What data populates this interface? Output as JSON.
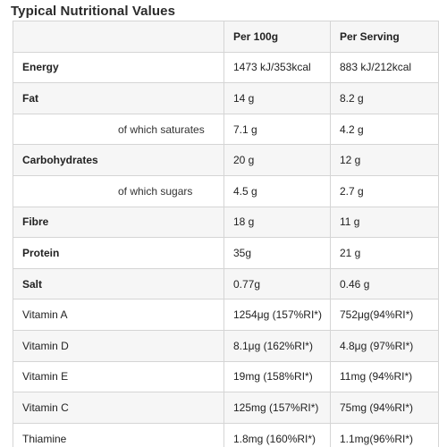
{
  "title": "Typical Nutritional Values",
  "header": {
    "label": "",
    "per100": "Per 100g",
    "perServing": "Per Serving"
  },
  "rows": [
    {
      "label": "Energy",
      "bold": true,
      "sub": false,
      "per100": "1473 kJ/353kcal",
      "perServing": "883 kJ/212kcal"
    },
    {
      "label": "Fat",
      "bold": true,
      "sub": false,
      "per100": "14 g",
      "perServing": "8.2 g"
    },
    {
      "label": "of which saturates",
      "bold": false,
      "sub": true,
      "per100": "7.1 g",
      "perServing": "4.2 g"
    },
    {
      "label": "Carbohydrates",
      "bold": true,
      "sub": false,
      "per100": "20 g",
      "perServing": "12 g"
    },
    {
      "label": "of which sugars",
      "bold": false,
      "sub": true,
      "per100": "4.5 g",
      "perServing": "2.7 g"
    },
    {
      "label": "Fibre",
      "bold": true,
      "sub": false,
      "per100": "18 g",
      "perServing": "11 g"
    },
    {
      "label": "Protein",
      "bold": true,
      "sub": false,
      "per100": "35g",
      "perServing": "21 g"
    },
    {
      "label": "Salt",
      "bold": true,
      "sub": false,
      "per100": "0.77g",
      "perServing": "0.46 g"
    },
    {
      "label": "Vitamin A",
      "bold": false,
      "sub": false,
      "per100": "1254μg (157%RI*)",
      "perServing": "752μg(94%RI*)"
    },
    {
      "label": "Vitamin D",
      "bold": false,
      "sub": false,
      "per100": "8.1μg (162%RI*)",
      "perServing": "4.8μg (97%RI*)"
    },
    {
      "label": "Vitamin E",
      "bold": false,
      "sub": false,
      "per100": "19mg (158%RI*)",
      "perServing": "11mg (94%RI*)"
    },
    {
      "label": "Vitamin C",
      "bold": false,
      "sub": false,
      "per100": "125mg (157%RI*)",
      "perServing": "75mg (94%RI*)"
    },
    {
      "label": "Thiamine",
      "bold": false,
      "sub": false,
      "per100": "1.8mg (160%RI*)",
      "perServing": "1.1mg(96%RI*)"
    }
  ]
}
